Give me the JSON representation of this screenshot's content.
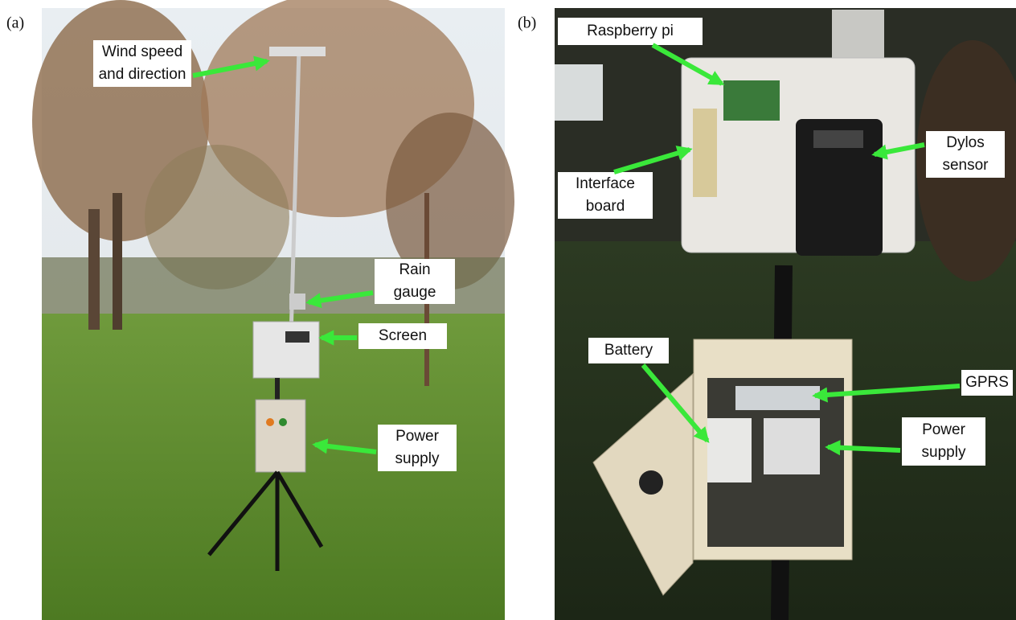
{
  "panels": [
    {
      "tag": "(a)",
      "labels": [
        {
          "lines": [
            "Wind speed",
            "and direction"
          ]
        },
        {
          "lines": [
            "Rain",
            "gauge"
          ]
        },
        {
          "lines": [
            "Screen"
          ]
        },
        {
          "lines": [
            "Power",
            "supply"
          ]
        }
      ]
    },
    {
      "tag": "(b)",
      "labels": [
        {
          "lines": [
            "Raspberry pi"
          ]
        },
        {
          "lines": [
            "Interface",
            "board"
          ]
        },
        {
          "lines": [
            "Dylos",
            "sensor"
          ]
        },
        {
          "lines": [
            "Battery"
          ]
        },
        {
          "lines": [
            "GPRS"
          ]
        },
        {
          "lines": [
            "Power",
            "supply"
          ]
        }
      ]
    }
  ]
}
